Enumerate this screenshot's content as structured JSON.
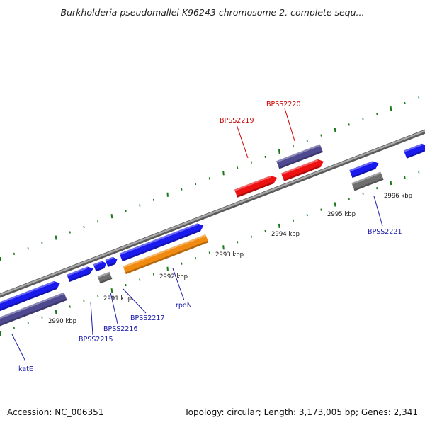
{
  "title": "Burkholderia pseudomallei K96243 chromosome 2, complete sequ...",
  "footer": {
    "accession": "Accession: NC_006351",
    "summary": "Topology: circular; Length: 3,173,005 bp; Genes: 2,341"
  },
  "colors": {
    "backbone": "#8a8a8a",
    "tick": "#1a7a1a",
    "gene_plus": "#1a1aee",
    "gene_minus": "#ee1111",
    "cds_gray": "#6f6f6f",
    "cds_navy": "#4f4a8f",
    "cds_orange": "#f08a10",
    "label_blue": "#1a1aaa",
    "label_red": "#cc0000"
  },
  "scale_labels": [
    {
      "id": "2990",
      "text": "2990 kbp"
    },
    {
      "id": "2991",
      "text": "2991 kbp"
    },
    {
      "id": "2992",
      "text": "2992 kbp"
    },
    {
      "id": "2993",
      "text": "2993 kbp"
    },
    {
      "id": "2994",
      "text": "2994 kbp"
    },
    {
      "id": "2995",
      "text": "2995 kbp"
    },
    {
      "id": "2996",
      "text": "2996 kbp"
    }
  ],
  "gene_labels": [
    {
      "id": "katE",
      "text": "katE",
      "strand": "plus"
    },
    {
      "id": "bpss2215",
      "text": "BPSS2215",
      "strand": "plus"
    },
    {
      "id": "bpss2216",
      "text": "BPSS2216",
      "strand": "plus"
    },
    {
      "id": "bpss2217",
      "text": "BPSS2217",
      "strand": "plus"
    },
    {
      "id": "rpon",
      "text": "rpoN",
      "strand": "plus"
    },
    {
      "id": "bpss2219",
      "text": "BPSS2219",
      "strand": "minus"
    },
    {
      "id": "bpss2220",
      "text": "BPSS2220",
      "strand": "minus"
    },
    {
      "id": "bpss2221",
      "text": "BPSS2221",
      "strand": "plus"
    }
  ]
}
